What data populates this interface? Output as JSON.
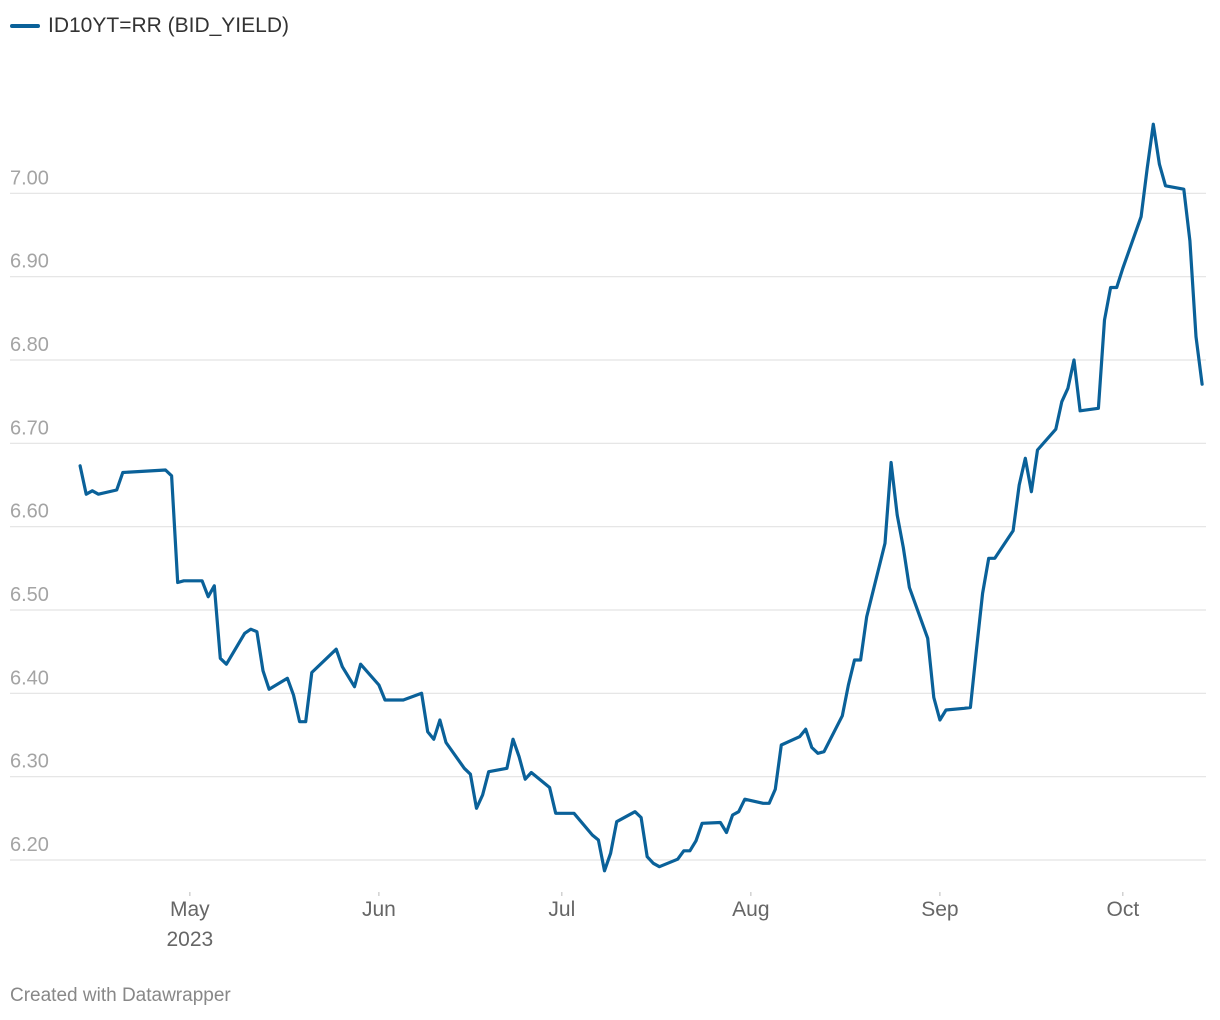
{
  "chart_data": {
    "type": "line",
    "title": "",
    "xlabel": "",
    "ylabel": "",
    "ylim": [
      6.17,
      7.16
    ],
    "yticks": [
      6.2,
      6.3,
      6.4,
      6.5,
      6.6,
      6.7,
      6.8,
      6.9,
      7.0
    ],
    "ytick_labels": [
      "6.20",
      "6.30",
      "6.40",
      "6.50",
      "6.60",
      "6.70",
      "6.80",
      "6.90",
      "7.00"
    ],
    "x_range": [
      "2023-04-12",
      "2023-10-13"
    ],
    "xticks": [
      {
        "date": "2023-05-01",
        "label": "May",
        "sublabel": "2023"
      },
      {
        "date": "2023-06-01",
        "label": "Jun",
        "sublabel": ""
      },
      {
        "date": "2023-07-01",
        "label": "Jul",
        "sublabel": ""
      },
      {
        "date": "2023-08-01",
        "label": "Aug",
        "sublabel": ""
      },
      {
        "date": "2023-09-01",
        "label": "Sep",
        "sublabel": ""
      },
      {
        "date": "2023-10-01",
        "label": "Oct",
        "sublabel": ""
      }
    ],
    "grid": true,
    "legend_position": "top-left",
    "series": [
      {
        "name": "ID10YT=RR (BID_YIELD)",
        "color": "#0a6199",
        "points": [
          [
            "2023-04-13",
            6.673
          ],
          [
            "2023-04-14",
            6.639
          ],
          [
            "2023-04-15",
            6.643
          ],
          [
            "2023-04-16",
            6.639
          ],
          [
            "2023-04-19",
            6.644
          ],
          [
            "2023-04-20",
            6.665
          ],
          [
            "2023-04-27",
            6.668
          ],
          [
            "2023-04-28",
            6.661
          ],
          [
            "2023-04-29",
            6.533
          ],
          [
            "2023-04-30",
            6.535
          ],
          [
            "2023-05-03",
            6.535
          ],
          [
            "2023-05-04",
            6.516
          ],
          [
            "2023-05-05",
            6.529
          ],
          [
            "2023-05-06",
            6.442
          ],
          [
            "2023-05-07",
            6.435
          ],
          [
            "2023-05-10",
            6.472
          ],
          [
            "2023-05-11",
            6.477
          ],
          [
            "2023-05-12",
            6.474
          ],
          [
            "2023-05-13",
            6.427
          ],
          [
            "2023-05-14",
            6.405
          ],
          [
            "2023-05-17",
            6.418
          ],
          [
            "2023-05-18",
            6.398
          ],
          [
            "2023-05-19",
            6.366
          ],
          [
            "2023-05-20",
            6.366
          ],
          [
            "2023-05-21",
            6.425
          ],
          [
            "2023-05-25",
            6.453
          ],
          [
            "2023-05-26",
            6.432
          ],
          [
            "2023-05-28",
            6.408
          ],
          [
            "2023-05-29",
            6.435
          ],
          [
            "2023-06-01",
            6.41
          ],
          [
            "2023-06-02",
            6.392
          ],
          [
            "2023-06-05",
            6.392
          ],
          [
            "2023-06-08",
            6.4
          ],
          [
            "2023-06-09",
            6.354
          ],
          [
            "2023-06-10",
            6.345
          ],
          [
            "2023-06-11",
            6.368
          ],
          [
            "2023-06-12",
            6.341
          ],
          [
            "2023-06-15",
            6.31
          ],
          [
            "2023-06-16",
            6.303
          ],
          [
            "2023-06-17",
            6.262
          ],
          [
            "2023-06-18",
            6.278
          ],
          [
            "2023-06-19",
            6.306
          ],
          [
            "2023-06-22",
            6.31
          ],
          [
            "2023-06-23",
            6.345
          ],
          [
            "2023-06-24",
            6.324
          ],
          [
            "2023-06-25",
            6.297
          ],
          [
            "2023-06-26",
            6.305
          ],
          [
            "2023-06-29",
            6.287
          ],
          [
            "2023-06-30",
            6.256
          ],
          [
            "2023-07-03",
            6.256
          ],
          [
            "2023-07-06",
            6.23
          ],
          [
            "2023-07-07",
            6.224
          ],
          [
            "2023-07-08",
            6.187
          ],
          [
            "2023-07-09",
            6.208
          ],
          [
            "2023-07-10",
            6.246
          ],
          [
            "2023-07-13",
            6.258
          ],
          [
            "2023-07-14",
            6.251
          ],
          [
            "2023-07-15",
            6.204
          ],
          [
            "2023-07-16",
            6.196
          ],
          [
            "2023-07-17",
            6.192
          ],
          [
            "2023-07-20",
            6.201
          ],
          [
            "2023-07-21",
            6.211
          ],
          [
            "2023-07-22",
            6.211
          ],
          [
            "2023-07-23",
            6.223
          ],
          [
            "2023-07-24",
            6.244
          ],
          [
            "2023-07-27",
            6.245
          ],
          [
            "2023-07-28",
            6.233
          ],
          [
            "2023-07-29",
            6.254
          ],
          [
            "2023-07-30",
            6.258
          ],
          [
            "2023-07-31",
            6.273
          ],
          [
            "2023-08-03",
            6.268
          ],
          [
            "2023-08-04",
            6.268
          ],
          [
            "2023-08-05",
            6.285
          ],
          [
            "2023-08-06",
            6.338
          ],
          [
            "2023-08-09",
            6.348
          ],
          [
            "2023-08-10",
            6.357
          ],
          [
            "2023-08-11",
            6.335
          ],
          [
            "2023-08-12",
            6.328
          ],
          [
            "2023-08-13",
            6.33
          ],
          [
            "2023-08-16",
            6.373
          ],
          [
            "2023-08-17",
            6.41
          ],
          [
            "2023-08-18",
            6.44
          ],
          [
            "2023-08-19",
            6.44
          ],
          [
            "2023-08-20",
            6.492
          ],
          [
            "2023-08-23",
            6.58
          ],
          [
            "2023-08-24",
            6.677
          ],
          [
            "2023-08-25",
            6.614
          ],
          [
            "2023-08-26",
            6.575
          ],
          [
            "2023-08-27",
            6.527
          ],
          [
            "2023-08-30",
            6.466
          ],
          [
            "2023-08-31",
            6.395
          ],
          [
            "2023-09-01",
            6.368
          ],
          [
            "2023-09-02",
            6.38
          ],
          [
            "2023-09-05",
            6.382
          ],
          [
            "2023-09-06",
            6.383
          ],
          [
            "2023-09-07",
            6.453
          ],
          [
            "2023-09-08",
            6.52
          ],
          [
            "2023-09-09",
            6.562
          ],
          [
            "2023-09-10",
            6.562
          ],
          [
            "2023-09-13",
            6.595
          ],
          [
            "2023-09-14",
            6.65
          ],
          [
            "2023-09-15",
            6.682
          ],
          [
            "2023-09-16",
            6.642
          ],
          [
            "2023-09-17",
            6.692
          ],
          [
            "2023-09-20",
            6.717
          ],
          [
            "2023-09-21",
            6.75
          ],
          [
            "2023-09-22",
            6.766
          ],
          [
            "2023-09-23",
            6.8
          ],
          [
            "2023-09-24",
            6.739
          ],
          [
            "2023-09-27",
            6.742
          ],
          [
            "2023-09-28",
            6.848
          ],
          [
            "2023-09-29",
            6.887
          ],
          [
            "2023-09-30",
            6.887
          ],
          [
            "2023-10-01",
            6.91
          ],
          [
            "2023-10-04",
            6.972
          ],
          [
            "2023-10-05",
            7.03
          ],
          [
            "2023-10-06",
            7.083
          ],
          [
            "2023-10-07",
            7.035
          ],
          [
            "2023-10-08",
            7.009
          ],
          [
            "2023-10-11",
            7.005
          ],
          [
            "2023-10-12",
            6.943
          ],
          [
            "2023-10-13",
            6.828
          ],
          [
            "2023-10-14",
            6.771
          ]
        ]
      }
    ]
  },
  "footer": {
    "credit": "Created with Datawrapper"
  }
}
